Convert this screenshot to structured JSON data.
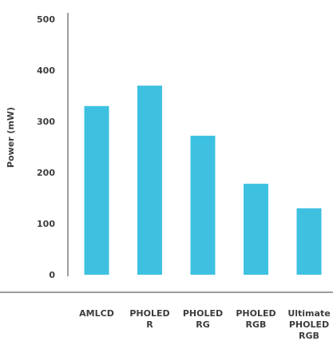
{
  "chart_data": {
    "type": "bar",
    "title": "",
    "xlabel": "",
    "ylabel": "Power (mW)",
    "ylim": [
      0,
      500
    ],
    "yticks": [
      0,
      100,
      200,
      300,
      400,
      500
    ],
    "grid": false,
    "categories": [
      [
        "AMLCD"
      ],
      [
        "PHOLED",
        "R"
      ],
      [
        "PHOLED",
        "RG"
      ],
      [
        "PHOLED",
        "RGB"
      ],
      [
        "Ultimate",
        "PHOLED",
        "RGB"
      ]
    ],
    "values": [
      330,
      370,
      272,
      178,
      130
    ],
    "colors": {
      "bar": "#3ec1e1",
      "axis": "#3d3d3d",
      "text": "#3d3d3d"
    }
  }
}
